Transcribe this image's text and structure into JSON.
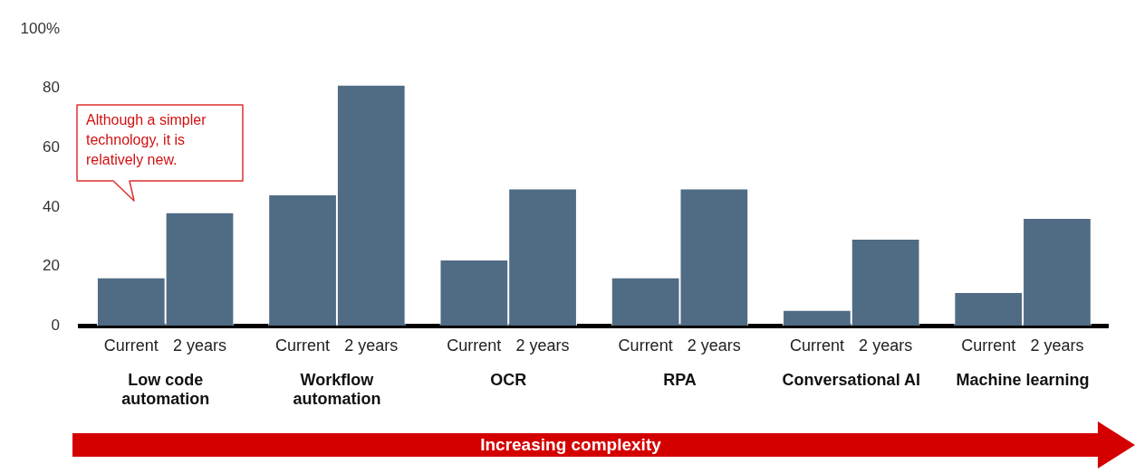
{
  "chart_data": {
    "type": "bar",
    "categories": [
      "Low code automation",
      "Workflow automation",
      "OCR",
      "RPA",
      "Conversational AI",
      "Machine learning"
    ],
    "series": [
      {
        "name": "Current",
        "color": "#506b84",
        "values": [
          16,
          44,
          22,
          16,
          5,
          11
        ]
      },
      {
        "name": "2 years",
        "color": "#506b84",
        "values": [
          38,
          81,
          46,
          46,
          29,
          36
        ]
      }
    ],
    "ylim": [
      0,
      100
    ],
    "yticks": [
      0,
      20,
      40,
      60,
      80,
      {
        "value": 100,
        "label": "100%"
      }
    ],
    "grid": false,
    "legend": false,
    "annotations": [
      "Although a simpler technology, it is relatively new.",
      "Increasing complexity"
    ]
  }
}
